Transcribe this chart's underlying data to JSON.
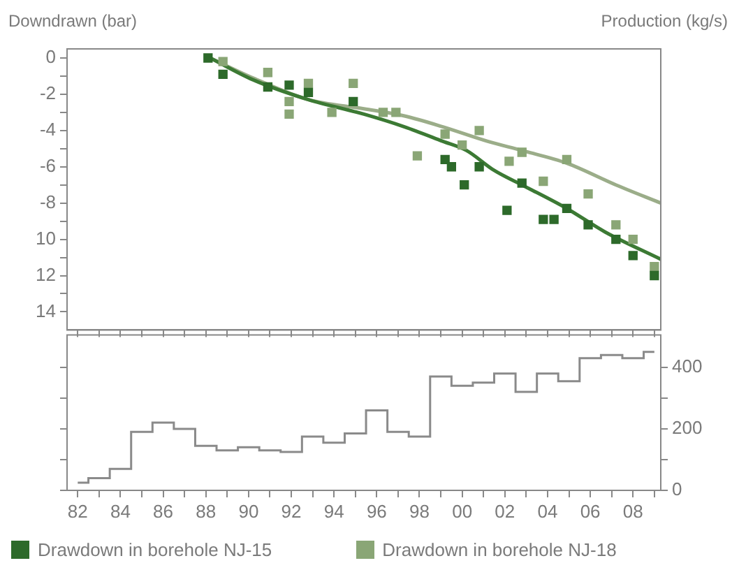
{
  "chart_data": [
    {
      "type": "scatter",
      "ylabel": "Downdrawn (bar)",
      "xlim": [
        1981.5,
        2009.3
      ],
      "xticks": [
        {
          "value": 1982,
          "label": null
        },
        {
          "value": 1983,
          "label": null
        },
        {
          "value": 1984,
          "label": null
        },
        {
          "value": 1985,
          "label": null
        },
        {
          "value": 1986,
          "label": null
        },
        {
          "value": 1987,
          "label": null
        },
        {
          "value": 1988,
          "label": null
        },
        {
          "value": 1989,
          "label": null
        },
        {
          "value": 1990,
          "label": null
        },
        {
          "value": 1991,
          "label": null
        },
        {
          "value": 1992,
          "label": null
        },
        {
          "value": 1993,
          "label": null
        },
        {
          "value": 1994,
          "label": null
        },
        {
          "value": 1995,
          "label": null
        },
        {
          "value": 1996,
          "label": null
        },
        {
          "value": 1997,
          "label": null
        },
        {
          "value": 1998,
          "label": null
        },
        {
          "value": 1999,
          "label": null
        },
        {
          "value": 2000,
          "label": null
        },
        {
          "value": 2001,
          "label": null
        },
        {
          "value": 2002,
          "label": null
        },
        {
          "value": 2003,
          "label": null
        },
        {
          "value": 2004,
          "label": null
        },
        {
          "value": 2005,
          "label": null
        },
        {
          "value": 2006,
          "label": null
        },
        {
          "value": 2007,
          "label": null
        },
        {
          "value": 2008,
          "label": null
        },
        {
          "value": 2009,
          "label": null
        }
      ],
      "ylim": [
        -15,
        0.5
      ],
      "yticks": [
        0,
        {
          "value": -1,
          "label": null
        },
        -2,
        {
          "value": -3,
          "label": null
        },
        -4,
        {
          "value": -5,
          "label": null
        },
        -6,
        {
          "value": -7,
          "label": null
        },
        -8,
        {
          "value": -9,
          "label": null
        },
        {
          "value": -10,
          "label": "10"
        },
        {
          "value": -11,
          "label": null
        },
        {
          "value": -12,
          "label": "12"
        },
        {
          "value": -13,
          "label": null
        },
        {
          "value": -14,
          "label": "14"
        }
      ],
      "tick_labels": "y",
      "grid": false,
      "legend": "bottom",
      "series": [
        {
          "name": "Drawdown in borehole NJ-15",
          "color": "#2d6a2a",
          "marker": "square",
          "x": [
            1988.1,
            1988.8,
            1990.9,
            1991.9,
            1992.8,
            1994.9,
            1999.2,
            1999.5,
            2000.1,
            2000.8,
            2002.1,
            2002.8,
            2003.8,
            2004.3,
            2004.9,
            2005.9,
            2007.2,
            2008,
            2009
          ],
          "values": [
            0,
            -0.9,
            -1.6,
            -1.5,
            -1.9,
            -2.4,
            -5.6,
            -6,
            -7,
            -6,
            -8.4,
            -6.9,
            -8.9,
            -8.9,
            -8.3,
            -9.2,
            -10,
            -10.9,
            -12
          ]
        },
        {
          "name": "Drawdown in borehole NJ-18",
          "color": "#8aa676",
          "marker": "square",
          "x": [
            1988.8,
            1990.9,
            1991.9,
            1991.9,
            1992.8,
            1993.9,
            1994.9,
            1996.3,
            1996.9,
            1997.9,
            1999.2,
            2000,
            2000.8,
            2002.2,
            2002.8,
            2003.8,
            2004.9,
            2005.9,
            2007.2,
            2008,
            2009
          ],
          "values": [
            -0.2,
            -0.8,
            -2.4,
            -3.1,
            -1.4,
            -3,
            -1.4,
            -3,
            -3,
            -5.4,
            -4.2,
            -4.8,
            -4,
            -5.7,
            -5.2,
            -6.8,
            -5.6,
            -7.5,
            -9.2,
            -10,
            -11.5
          ]
        },
        {
          "type": "line",
          "color": "#3c7a34",
          "x": [
            1988.2,
            1990.2,
            1992.8,
            1995.4,
            1997.3,
            1999.1,
            2000.2,
            2001.5,
            2002.8,
            2004.9,
            2006.7,
            2009.3
          ],
          "values": [
            0,
            -1.2,
            -2.3,
            -3.1,
            -3.8,
            -4.6,
            -5.1,
            -6.2,
            -7,
            -8.3,
            -9.6,
            -11.1
          ]
        },
        {
          "type": "line",
          "color": "#9bad89",
          "x": [
            1988.2,
            1990.2,
            1992.8,
            1995.4,
            1997.3,
            1999.1,
            2001.2,
            2002.8,
            2004.9,
            2007.2,
            2009.3
          ],
          "values": [
            0,
            -1.1,
            -2.3,
            -2.8,
            -3.2,
            -3.8,
            -4.6,
            -5.1,
            -5.8,
            -7,
            -8
          ]
        }
      ]
    },
    {
      "type": "step",
      "y2label": "Production (kg/s)",
      "xlim": [
        1981.5,
        2009.3
      ],
      "xticks": [
        {
          "value": 1982,
          "label": "82"
        },
        {
          "value": 1983,
          "label": null
        },
        {
          "value": 1984,
          "label": "84"
        },
        {
          "value": 1985,
          "label": null
        },
        {
          "value": 1986,
          "label": "86"
        },
        {
          "value": 1987,
          "label": null
        },
        {
          "value": 1988,
          "label": "88"
        },
        {
          "value": 1989,
          "label": null
        },
        {
          "value": 1990,
          "label": "90"
        },
        {
          "value": 1991,
          "label": null
        },
        {
          "value": 1992,
          "label": "92"
        },
        {
          "value": 1993,
          "label": null
        },
        {
          "value": 1994,
          "label": "94"
        },
        {
          "value": 1995,
          "label": null
        },
        {
          "value": 1996,
          "label": "96"
        },
        {
          "value": 1997,
          "label": null
        },
        {
          "value": 1998,
          "label": "98"
        },
        {
          "value": 1999,
          "label": null
        },
        {
          "value": 2000,
          "label": "00"
        },
        {
          "value": 2001,
          "label": null
        },
        {
          "value": 2002,
          "label": "02"
        },
        {
          "value": 2003,
          "label": null
        },
        {
          "value": 2004,
          "label": "04"
        },
        {
          "value": 2005,
          "label": null
        },
        {
          "value": 2006,
          "label": "06"
        },
        {
          "value": 2007,
          "label": null
        },
        {
          "value": 2008,
          "label": "08"
        },
        {
          "value": 2009,
          "label": null
        }
      ],
      "x": [
        1982,
        1983,
        1984,
        1985,
        1986,
        1987,
        1988,
        1989,
        1990,
        1991,
        1992,
        1993,
        1994,
        1995,
        1996,
        1997,
        1998,
        1999,
        2000,
        2001,
        2002,
        2003,
        2004,
        2005,
        2006,
        2007,
        2008,
        2009
      ],
      "y2lim": [
        0,
        505
      ],
      "y2ticks": [
        0,
        {
          "value": 100,
          "label": null
        },
        200,
        {
          "value": 300,
          "label": null
        },
        400
      ],
      "grid": false,
      "series": [
        {
          "color": "#8a8a8a",
          "axis": "y2",
          "values": [
            25,
            40,
            70,
            190,
            220,
            200,
            145,
            130,
            140,
            130,
            125,
            175,
            155,
            185,
            260,
            190,
            175,
            370,
            340,
            350,
            380,
            320,
            380,
            355,
            430,
            440,
            430,
            450
          ]
        }
      ]
    }
  ]
}
